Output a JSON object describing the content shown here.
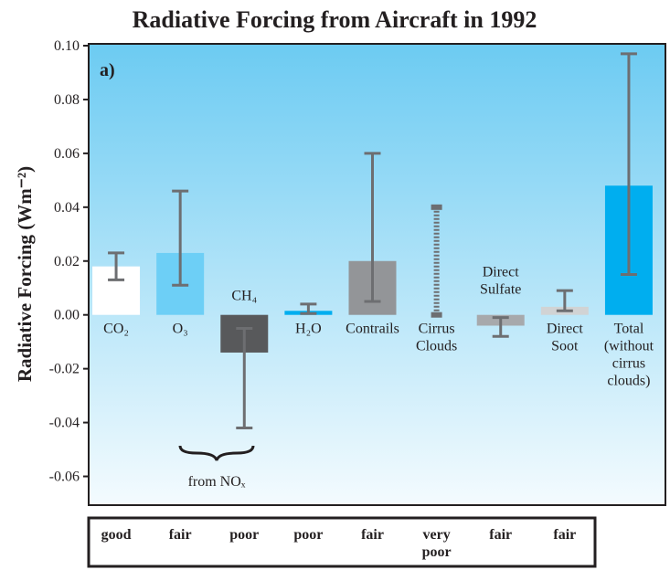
{
  "chart_data": {
    "type": "bar",
    "title": "Radiative Forcing from Aircraft in 1992",
    "y_label": "Radiative Forcing (Wm⁻²)",
    "panel_label": "a)",
    "categories": [
      "CO₂",
      "O₃",
      "CH₄",
      "H₂O",
      "Contrails",
      "Cirrus\nClouds",
      "Direct\nSulfate",
      "Direct\nSoot",
      "Total\n(without\ncirrus\nclouds)"
    ],
    "values": [
      0.018,
      0.023,
      -0.014,
      0.0015,
      0.02,
      null,
      -0.004,
      0.003,
      0.048
    ],
    "err_low": [
      0.013,
      0.011,
      -0.042,
      0.0005,
      0.005,
      0.0,
      -0.008,
      0.0015,
      0.015
    ],
    "err_high": [
      0.023,
      0.046,
      -0.005,
      0.004,
      0.06,
      0.04,
      -0.001,
      0.009,
      0.097
    ],
    "colors": [
      "#ffffff",
      "#6dcff6",
      "#58595b",
      "#00aeef",
      "#939598",
      null,
      "#a7a9ac",
      "#d1d3d4",
      "#00aeef"
    ],
    "annotation": "from NOₓ",
    "confidence": [
      "good",
      "fair",
      "poor",
      "poor",
      "fair",
      "very\npoor",
      "fair",
      "fair"
    ],
    "ylim": [
      -0.07,
      0.1
    ],
    "yticks": [
      -0.06,
      -0.04,
      -0.02,
      {
        "value": 0,
        "label": "0.00"
      },
      0.02,
      0.04,
      0.06,
      0.08,
      {
        "value": 0.1,
        "label": "0.10"
      }
    ]
  }
}
